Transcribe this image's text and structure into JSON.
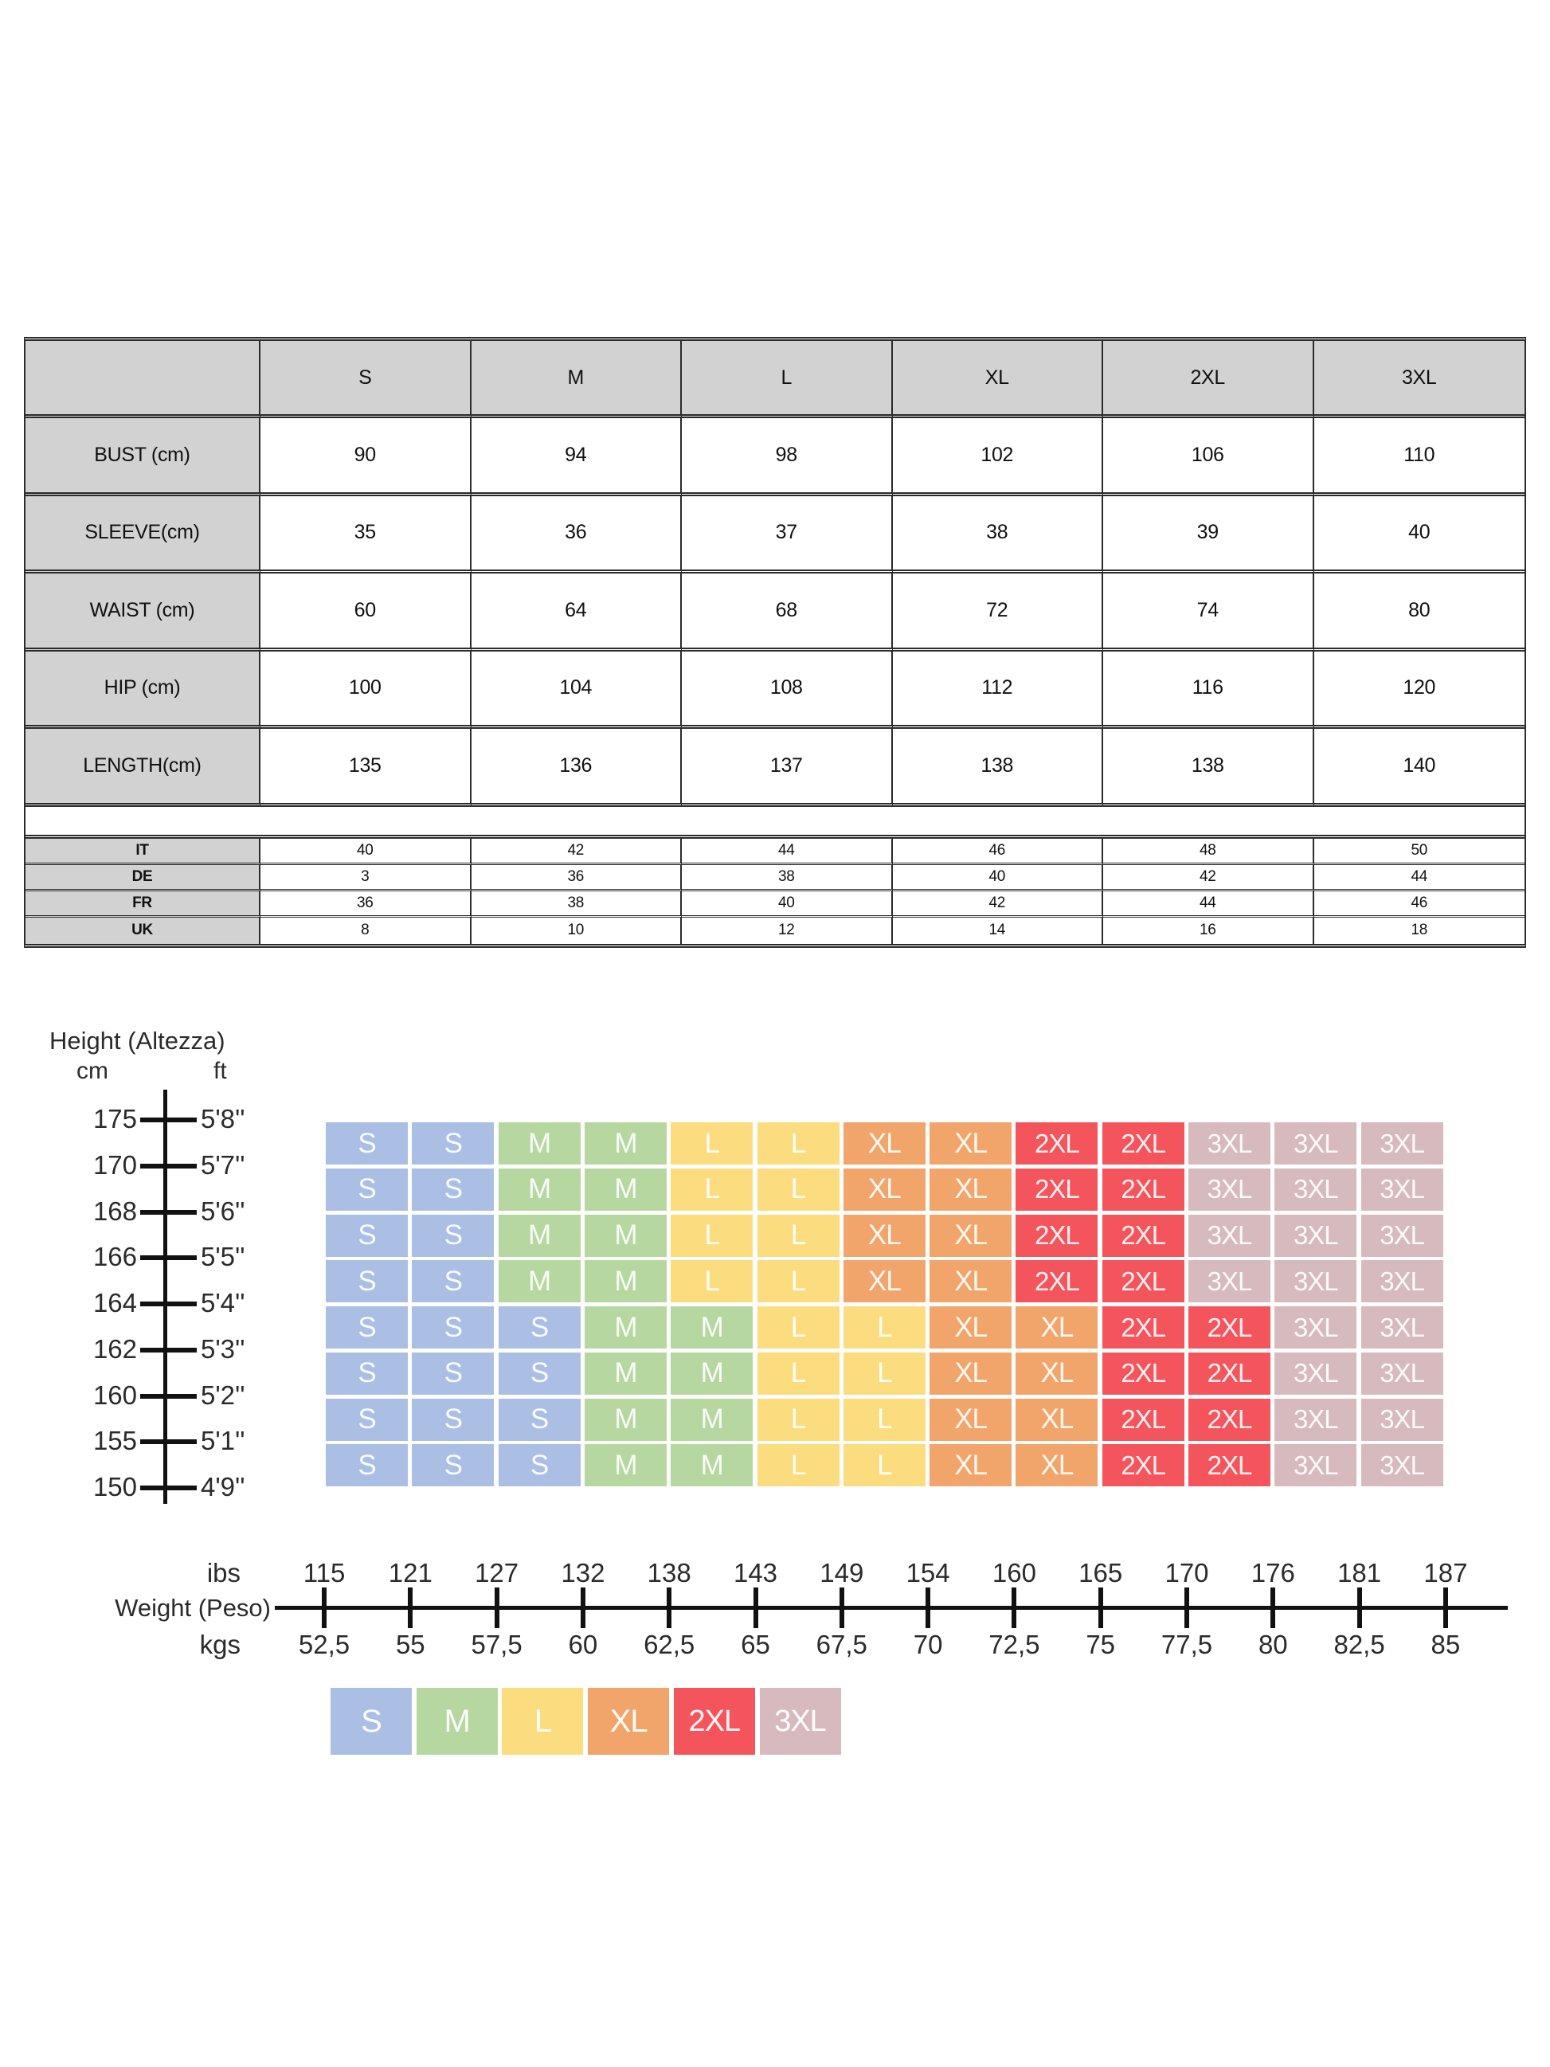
{
  "measurement_table": {
    "size_columns": [
      "S",
      "M",
      "L",
      "XL",
      "2XL",
      "3XL"
    ],
    "rows": [
      {
        "label": "BUST (cm)",
        "values": [
          "90",
          "94",
          "98",
          "102",
          "106",
          "110"
        ]
      },
      {
        "label": "SLEEVE(cm)",
        "values": [
          "35",
          "36",
          "37",
          "38",
          "39",
          "40"
        ]
      },
      {
        "label": "WAIST (cm)",
        "values": [
          "60",
          "64",
          "68",
          "72",
          "74",
          "80"
        ]
      },
      {
        "label": "HIP (cm)",
        "values": [
          "100",
          "104",
          "108",
          "112",
          "116",
          "120"
        ]
      },
      {
        "label": "LENGTH(cm)",
        "values": [
          "135",
          "136",
          "137",
          "138",
          "138",
          "140"
        ]
      }
    ],
    "intl_rows": [
      {
        "label": "IT",
        "values": [
          "40",
          "42",
          "44",
          "46",
          "48",
          "50"
        ]
      },
      {
        "label": "DE",
        "values": [
          "3",
          "36",
          "38",
          "40",
          "42",
          "44"
        ]
      },
      {
        "label": "FR",
        "values": [
          "36",
          "38",
          "40",
          "42",
          "44",
          "46"
        ]
      },
      {
        "label": "UK",
        "values": [
          "8",
          "10",
          "12",
          "14",
          "16",
          "18"
        ]
      }
    ]
  },
  "size_colors": {
    "S": "#aabfe3",
    "M": "#b6d7a0",
    "L": "#fbdd80",
    "XL": "#f1a56a",
    "2XL": "#f4555c",
    "3XL": "#d7babd"
  },
  "height_axis": {
    "title": "Height (Altezza)",
    "unit_left": "cm",
    "unit_right": "ft",
    "ticks": [
      {
        "cm": "175",
        "ft": "5'8''"
      },
      {
        "cm": "170",
        "ft": "5'7''"
      },
      {
        "cm": "168",
        "ft": "5'6''"
      },
      {
        "cm": "166",
        "ft": "5'5''"
      },
      {
        "cm": "164",
        "ft": "5'4''"
      },
      {
        "cm": "162",
        "ft": "5'3''"
      },
      {
        "cm": "160",
        "ft": "5'2''"
      },
      {
        "cm": "155",
        "ft": "5'1''"
      },
      {
        "cm": "150",
        "ft": "4'9''"
      }
    ]
  },
  "weight_axis": {
    "label": "Weight (Peso)",
    "unit_top": "ibs",
    "unit_bottom": "kgs",
    "lbs": [
      "115",
      "121",
      "127",
      "132",
      "138",
      "143",
      "149",
      "154",
      "160",
      "165",
      "170",
      "176",
      "181",
      "187"
    ],
    "kgs": [
      "52,5",
      "55",
      "57,5",
      "60",
      "62,5",
      "65",
      "67,5",
      "70",
      "72,5",
      "75",
      "77,5",
      "80",
      "82,5",
      "85"
    ]
  },
  "size_grid": {
    "rows": [
      [
        "S",
        "S",
        "M",
        "M",
        "L",
        "L",
        "XL",
        "XL",
        "2XL",
        "2XL",
        "3XL",
        "3XL",
        "3XL"
      ],
      [
        "S",
        "S",
        "M",
        "M",
        "L",
        "L",
        "XL",
        "XL",
        "2XL",
        "2XL",
        "3XL",
        "3XL",
        "3XL"
      ],
      [
        "S",
        "S",
        "M",
        "M",
        "L",
        "L",
        "XL",
        "XL",
        "2XL",
        "2XL",
        "3XL",
        "3XL",
        "3XL"
      ],
      [
        "S",
        "S",
        "M",
        "M",
        "L",
        "L",
        "XL",
        "XL",
        "2XL",
        "2XL",
        "3XL",
        "3XL",
        "3XL"
      ],
      [
        "S",
        "S",
        "S",
        "M",
        "M",
        "L",
        "L",
        "XL",
        "XL",
        "2XL",
        "2XL",
        "3XL",
        "3XL"
      ],
      [
        "S",
        "S",
        "S",
        "M",
        "M",
        "L",
        "L",
        "XL",
        "XL",
        "2XL",
        "2XL",
        "3XL",
        "3XL"
      ],
      [
        "S",
        "S",
        "S",
        "M",
        "M",
        "L",
        "L",
        "XL",
        "XL",
        "2XL",
        "2XL",
        "3XL",
        "3XL"
      ],
      [
        "S",
        "S",
        "S",
        "M",
        "M",
        "L",
        "L",
        "XL",
        "XL",
        "2XL",
        "2XL",
        "3XL",
        "3XL"
      ]
    ]
  },
  "legend": [
    "S",
    "M",
    "L",
    "XL",
    "2XL",
    "3XL"
  ],
  "chart_data": [
    {
      "type": "table",
      "title": "Garment measurements by size",
      "columns": [
        "",
        "S",
        "M",
        "L",
        "XL",
        "2XL",
        "3XL"
      ],
      "rows": [
        [
          "BUST (cm)",
          90,
          94,
          98,
          102,
          106,
          110
        ],
        [
          "SLEEVE(cm)",
          35,
          36,
          37,
          38,
          39,
          40
        ],
        [
          "WAIST (cm)",
          60,
          64,
          68,
          72,
          74,
          80
        ],
        [
          "HIP (cm)",
          100,
          104,
          108,
          112,
          116,
          120
        ],
        [
          "LENGTH(cm)",
          135,
          136,
          137,
          138,
          138,
          140
        ]
      ]
    },
    {
      "type": "table",
      "title": "International size conversion",
      "columns": [
        "",
        "S",
        "M",
        "L",
        "XL",
        "2XL",
        "3XL"
      ],
      "rows": [
        [
          "IT",
          40,
          42,
          44,
          46,
          48,
          50
        ],
        [
          "DE",
          3,
          36,
          38,
          40,
          42,
          44
        ],
        [
          "FR",
          36,
          38,
          40,
          42,
          44,
          46
        ],
        [
          "UK",
          8,
          10,
          12,
          14,
          16,
          18
        ]
      ]
    },
    {
      "type": "heatmap",
      "title": "Recommended size by height and weight",
      "x_axis": {
        "label": "Weight (Peso)",
        "lbs": [
          115,
          121,
          127,
          132,
          138,
          143,
          149,
          154,
          160,
          165,
          170,
          176,
          181,
          187
        ],
        "kgs": [
          52.5,
          55,
          57.5,
          60,
          62.5,
          65,
          67.5,
          70,
          72.5,
          75,
          77.5,
          80,
          82.5,
          85
        ]
      },
      "y_axis": {
        "label": "Height (Altezza)",
        "cm": [
          175,
          170,
          168,
          166,
          164,
          162,
          160,
          155,
          150
        ],
        "ft": [
          "5'8''",
          "5'7''",
          "5'6''",
          "5'5''",
          "5'4''",
          "5'3''",
          "5'2''",
          "5'1''",
          "4'9''"
        ]
      },
      "cells": [
        [
          "S",
          "S",
          "M",
          "M",
          "L",
          "L",
          "XL",
          "XL",
          "2XL",
          "2XL",
          "3XL",
          "3XL",
          "3XL"
        ],
        [
          "S",
          "S",
          "M",
          "M",
          "L",
          "L",
          "XL",
          "XL",
          "2XL",
          "2XL",
          "3XL",
          "3XL",
          "3XL"
        ],
        [
          "S",
          "S",
          "M",
          "M",
          "L",
          "L",
          "XL",
          "XL",
          "2XL",
          "2XL",
          "3XL",
          "3XL",
          "3XL"
        ],
        [
          "S",
          "S",
          "M",
          "M",
          "L",
          "L",
          "XL",
          "XL",
          "2XL",
          "2XL",
          "3XL",
          "3XL",
          "3XL"
        ],
        [
          "S",
          "S",
          "S",
          "M",
          "M",
          "L",
          "L",
          "XL",
          "XL",
          "2XL",
          "2XL",
          "3XL",
          "3XL"
        ],
        [
          "S",
          "S",
          "S",
          "M",
          "M",
          "L",
          "L",
          "XL",
          "XL",
          "2XL",
          "2XL",
          "3XL",
          "3XL"
        ],
        [
          "S",
          "S",
          "S",
          "M",
          "M",
          "L",
          "L",
          "XL",
          "XL",
          "2XL",
          "2XL",
          "3XL",
          "3XL"
        ],
        [
          "S",
          "S",
          "S",
          "M",
          "M",
          "L",
          "L",
          "XL",
          "XL",
          "2XL",
          "2XL",
          "3XL",
          "3XL"
        ]
      ],
      "legend": [
        "S",
        "M",
        "L",
        "XL",
        "2XL",
        "3XL"
      ]
    }
  ]
}
